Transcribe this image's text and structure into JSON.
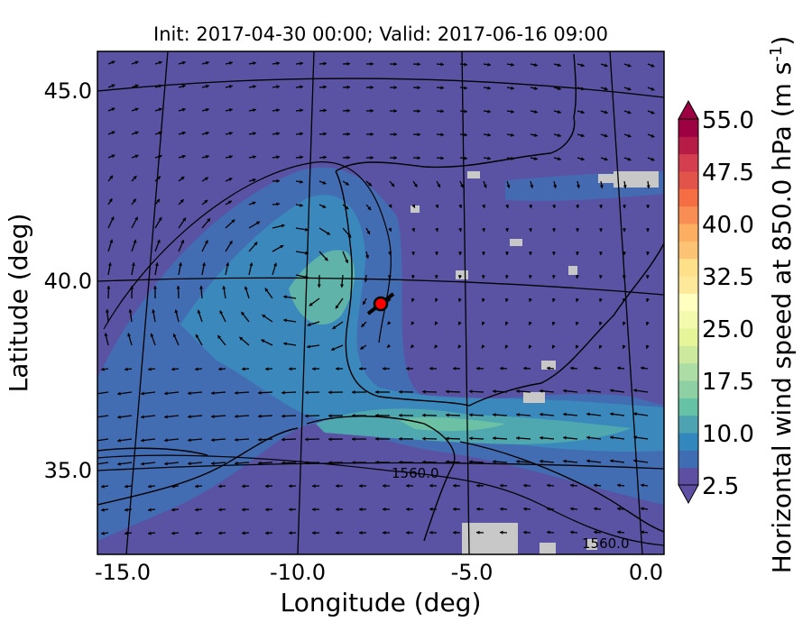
{
  "title": "Init: 2017-04-30 00:00; Valid: 2017-06-16 09:00",
  "xaxis": {
    "label": "Longitude (deg)",
    "ticks": [
      "-15.0",
      "-10.0",
      "-5.0",
      "0.0"
    ]
  },
  "yaxis": {
    "label": "Latitude (deg)",
    "ticks": [
      "45.0",
      "40.0",
      "35.0"
    ]
  },
  "colorbar": {
    "label": "Horizontal wind speed at 850.0 hPa (m s",
    "label_exp": "-1",
    "label_close": ")",
    "tick_labels": [
      "55.0",
      "47.5",
      "40.0",
      "32.5",
      "25.0",
      "17.5",
      "10.0",
      "2.5"
    ],
    "levels": [
      2.5,
      55.0
    ],
    "colors": [
      "#5e4fa2",
      "#3f6db3",
      "#3288bd",
      "#4ea3b2",
      "#66c2a5",
      "#8ed0a4",
      "#abdda4",
      "#cde99e",
      "#e6f598",
      "#f3faad",
      "#ffffbf",
      "#fee99a",
      "#fee08b",
      "#fdc374",
      "#fdae61",
      "#f88e53",
      "#f46d43",
      "#e25449",
      "#d53e4f",
      "#b71c46",
      "#9e0142"
    ]
  },
  "contour_labels": [
    "1560.0",
    "1560.0"
  ],
  "marker": {
    "lon": -7.6,
    "lat": 39.3,
    "color": "#ff0000"
  },
  "chart_data": {
    "type": "map",
    "title": "Init: 2017-04-30 00:00; Valid: 2017-06-16 09:00",
    "xlabel": "Longitude (deg)",
    "ylabel": "Latitude (deg)",
    "xlim": [
      -16.0,
      0.1
    ],
    "ylim": [
      32.7,
      46.2
    ],
    "colorbar_range": [
      2.5,
      55.0
    ],
    "contour_level": 1560.0,
    "marker": {
      "lon": -7.6,
      "lat": 39.3
    }
  }
}
